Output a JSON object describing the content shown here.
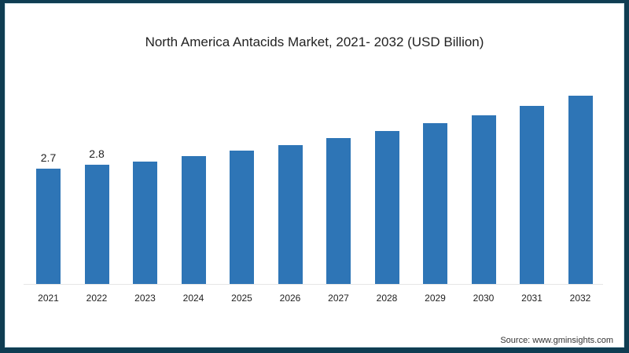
{
  "title": "North America Antacids Market, 2021- 2032 (USD Billion)",
  "source": "Source: www.gminsights.com",
  "colors": {
    "bar": "#2e75b6",
    "frame": "#0f3d52"
  },
  "chart_data": {
    "type": "bar",
    "title": "North America Antacids Market, 2021- 2032 (USD Billion)",
    "xlabel": "",
    "ylabel": "USD Billion",
    "categories": [
      "2021",
      "2022",
      "2023",
      "2024",
      "2025",
      "2026",
      "2027",
      "2028",
      "2029",
      "2030",
      "2031",
      "2032"
    ],
    "values": [
      2.7,
      2.8,
      2.87,
      3.0,
      3.12,
      3.25,
      3.42,
      3.58,
      3.77,
      3.95,
      4.17,
      4.41
    ],
    "data_labels": {
      "2021": "2.7",
      "2022": "2.8"
    },
    "grid": false,
    "legend": null,
    "ylim": [
      0,
      4.6
    ]
  }
}
